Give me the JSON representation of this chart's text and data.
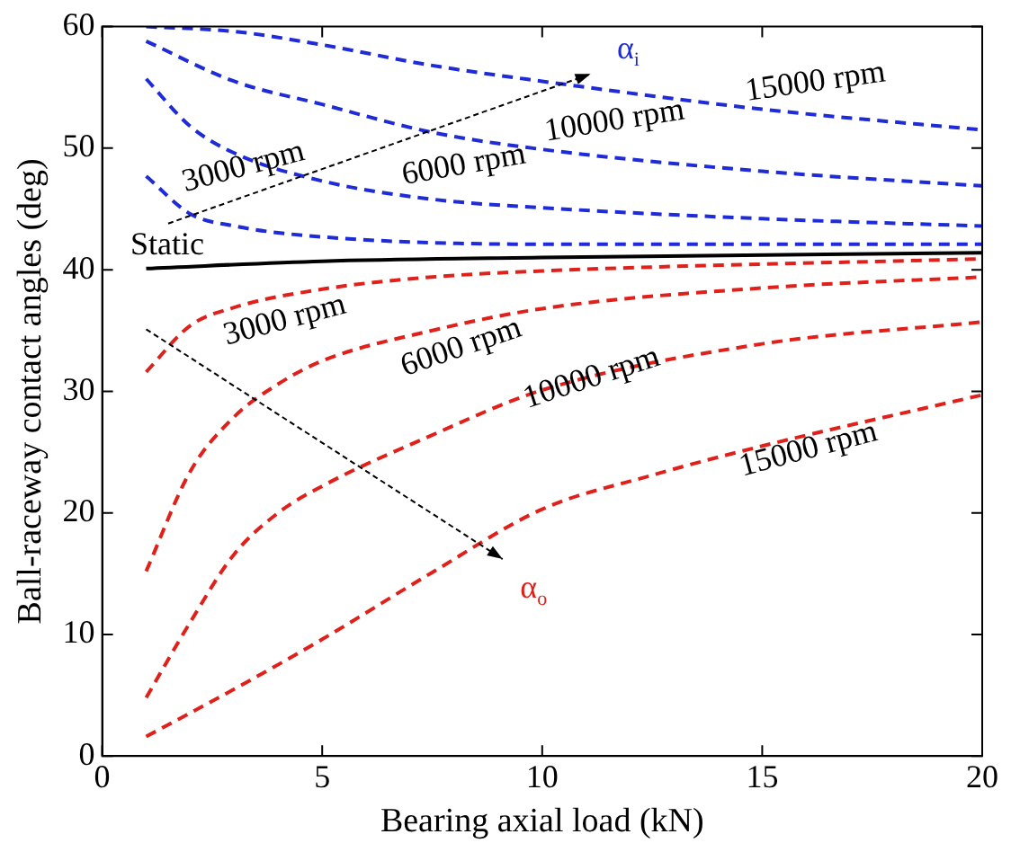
{
  "chart_data": {
    "type": "line",
    "xlabel": "Bearing axial load (kN)",
    "ylabel": "Ball-raceway contact angles (deg)",
    "xlim": [
      0,
      20
    ],
    "xticks": [
      0,
      5,
      10,
      15,
      20
    ],
    "ylim": [
      0,
      60
    ],
    "yticks": [
      0,
      10,
      20,
      30,
      40,
      50,
      60
    ],
    "grid": false,
    "legend": false,
    "marker": "none",
    "series": [
      {
        "color": "#1f2bd6",
        "line_style": "dashed",
        "x": [
          1,
          3,
          5,
          7.5,
          10,
          15,
          20
        ],
        "values": [
          60,
          59.6,
          58.5,
          56.8,
          55.5,
          53.2,
          51.5
        ]
      },
      {
        "color": "#1f2bd6",
        "line_style": "dashed",
        "x": [
          1,
          3,
          5,
          7.5,
          10,
          15,
          20
        ],
        "values": [
          58.8,
          55.5,
          53.6,
          51.3,
          49.9,
          48.1,
          46.9
        ]
      },
      {
        "color": "#1f2bd6",
        "line_style": "dashed",
        "x": [
          1,
          2,
          3,
          5,
          7.5,
          10,
          15,
          20
        ],
        "values": [
          55.7,
          51.8,
          49.6,
          47.3,
          45.8,
          45.1,
          44.2,
          43.6
        ]
      },
      {
        "color": "#1f2bd6",
        "line_style": "dashed",
        "x": [
          1,
          2,
          3,
          5,
          10,
          20
        ],
        "values": [
          47.7,
          44.6,
          43.6,
          42.7,
          42.1,
          42.1
        ]
      },
      {
        "color": "#000000",
        "line_style": "solid",
        "x": [
          1,
          5,
          10,
          20
        ],
        "values": [
          40.1,
          40.7,
          41.0,
          41.4
        ]
      },
      {
        "color": "#e0201a",
        "line_style": "dashed",
        "x": [
          1,
          2,
          3,
          5,
          7.5,
          10,
          20
        ],
        "values": [
          31.6,
          35.4,
          36.9,
          38.4,
          39.4,
          39.9,
          40.9
        ]
      },
      {
        "color": "#e0201a",
        "line_style": "dashed",
        "x": [
          1,
          2,
          3,
          4,
          5,
          7.5,
          10,
          15,
          20
        ],
        "values": [
          15.2,
          23.4,
          27.9,
          30.6,
          32.5,
          35.0,
          36.8,
          38.5,
          39.4
        ]
      },
      {
        "color": "#e0201a",
        "line_style": "dashed",
        "x": [
          1,
          2,
          3,
          4,
          5,
          7.5,
          10,
          15,
          20
        ],
        "values": [
          4.8,
          11.0,
          16.6,
          20.0,
          22.2,
          26.4,
          30.1,
          33.9,
          35.7
        ]
      },
      {
        "color": "#e0201a",
        "line_style": "dashed",
        "x": [
          1,
          3,
          5,
          7.5,
          10,
          12.5,
          15,
          20
        ],
        "values": [
          1.6,
          5.5,
          9.6,
          15.1,
          20.3,
          23.1,
          25.5,
          29.7
        ]
      }
    ],
    "annotations": [
      "15000 rpm",
      "10000 rpm",
      "6000 rpm",
      "3000 rpm",
      "Static",
      "3000 rpm",
      "6000 rpm",
      "10000 rpm",
      "15000 rpm",
      "α$_{i}$",
      "α$_{o}$"
    ]
  }
}
